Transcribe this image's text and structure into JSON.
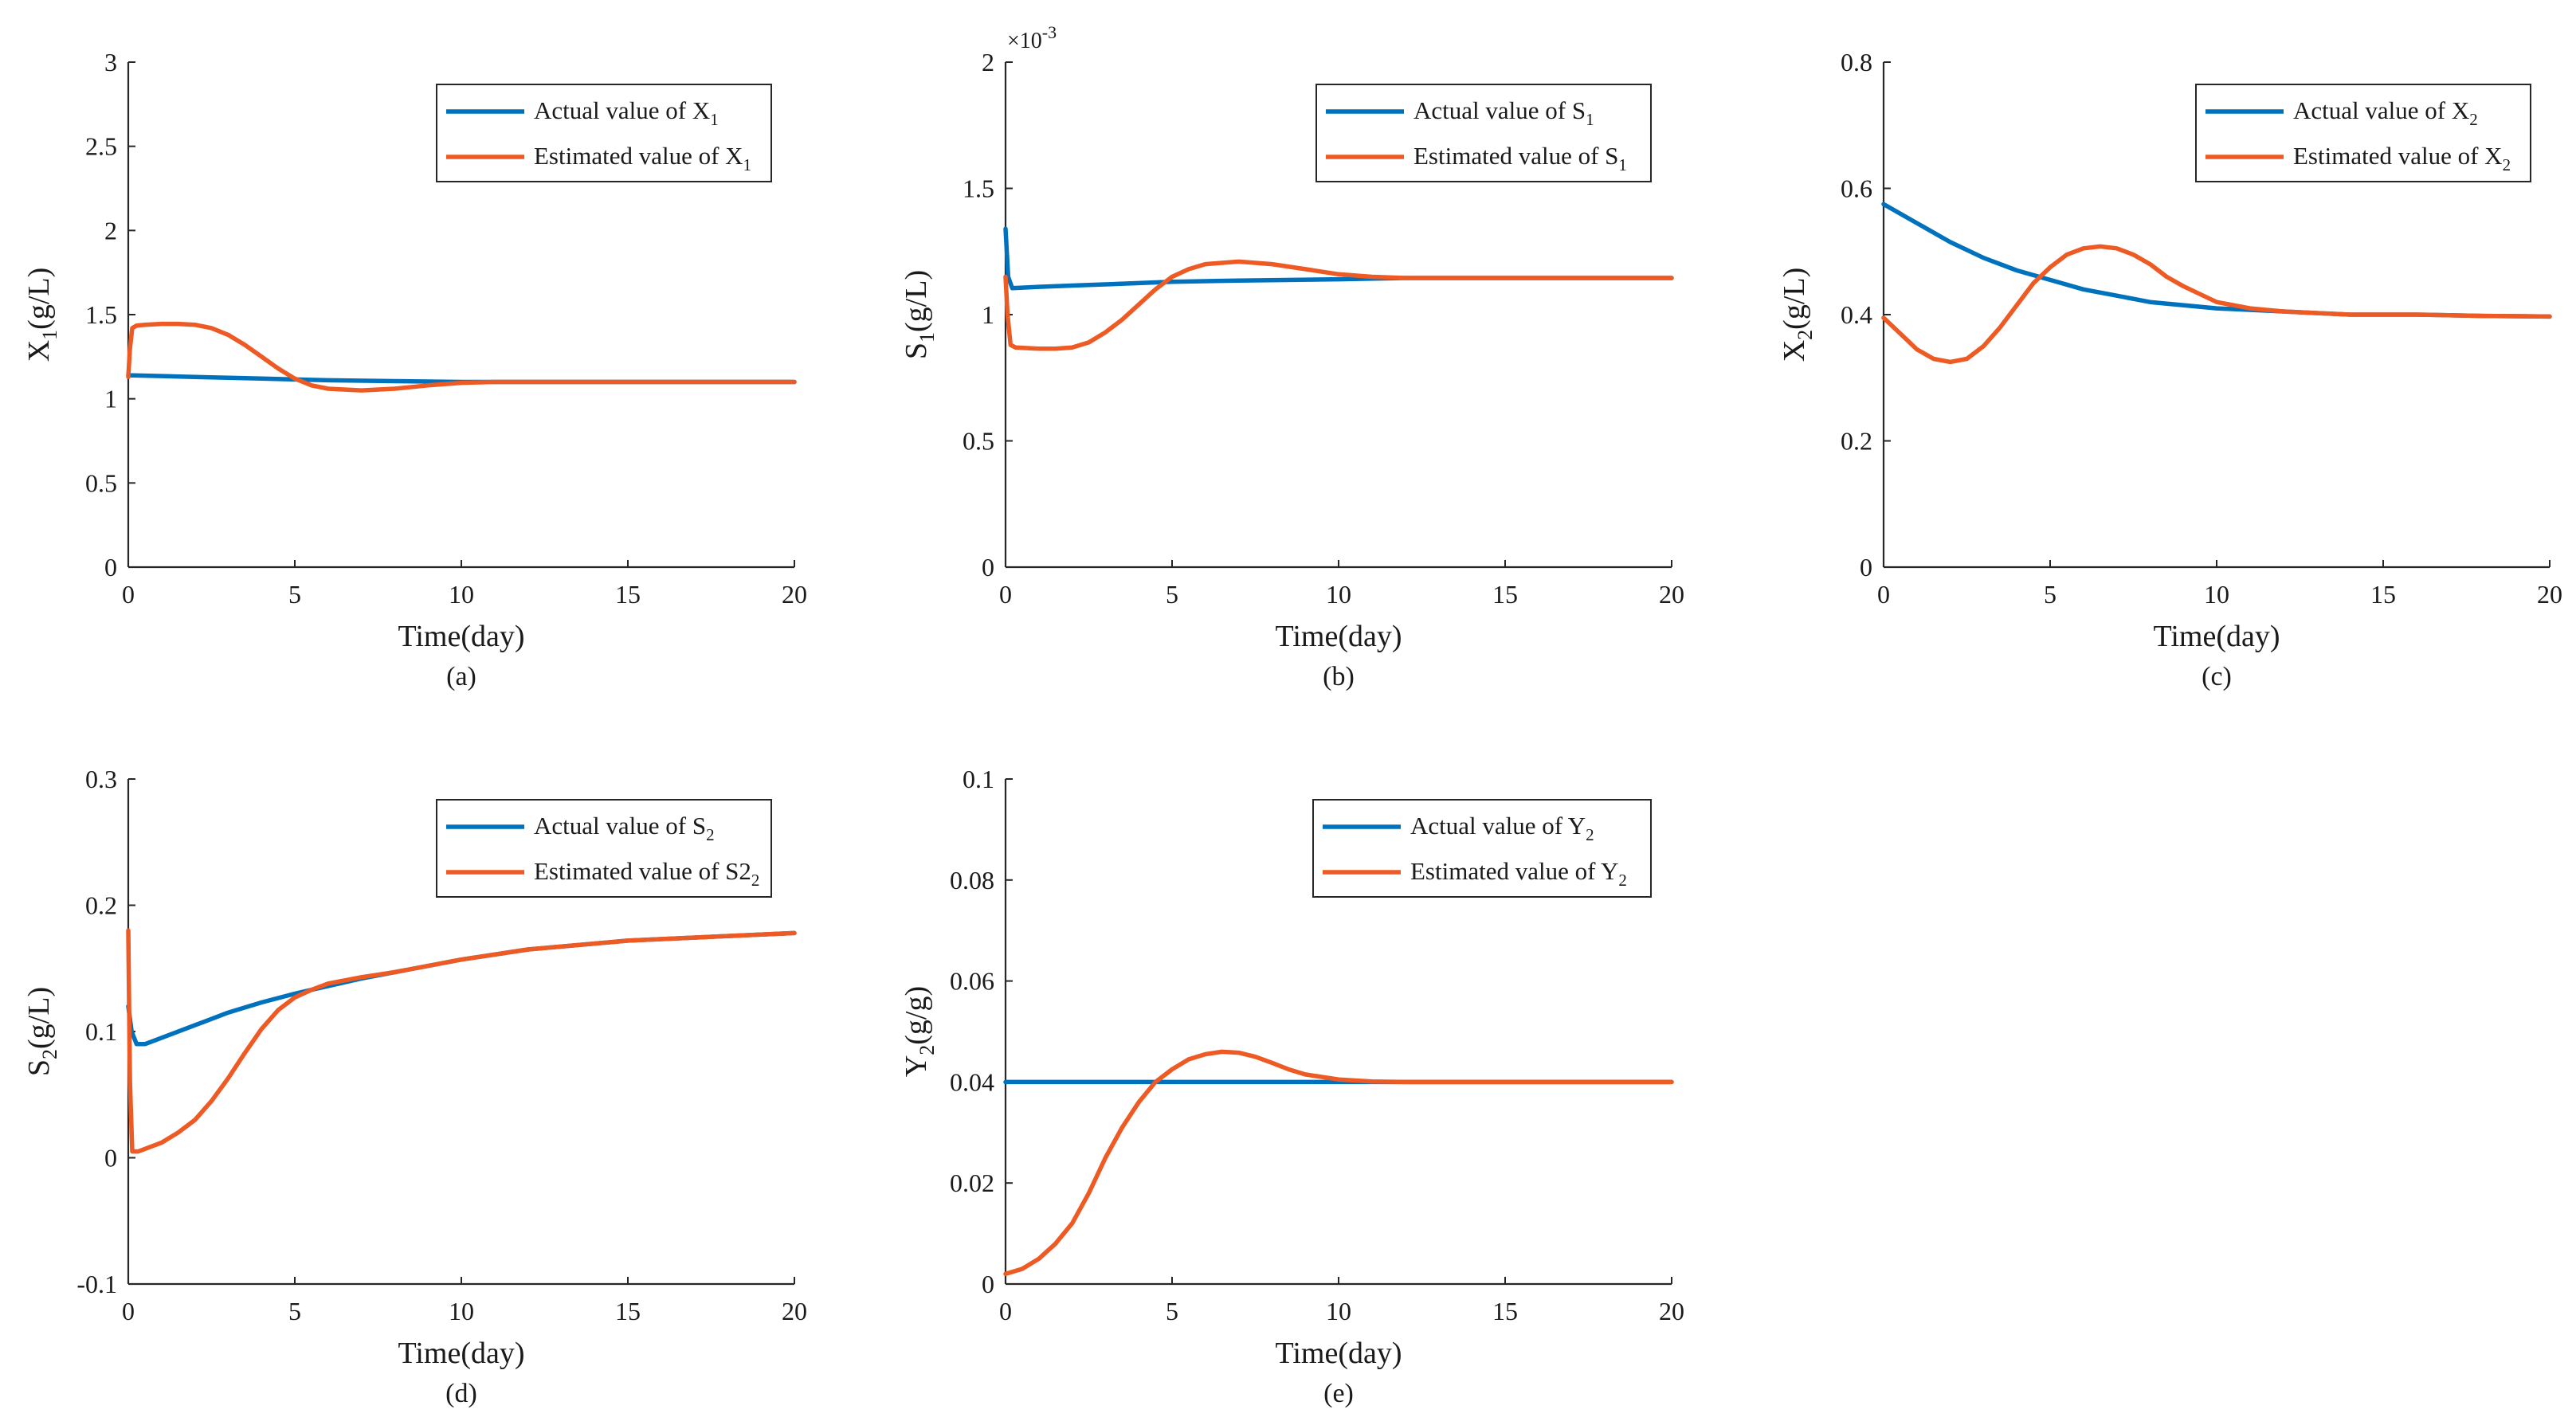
{
  "chart_data": [
    {
      "id": "a",
      "type": "line",
      "panel_label": "(a)",
      "xlabel": "Time(day)",
      "ylabel_main": "X",
      "ylabel_sub": "1",
      "ylabel_rest": "(g/L)",
      "xlim": [
        0,
        20
      ],
      "ylim": [
        0,
        3
      ],
      "xticks": [
        "0",
        "5",
        "10",
        "15",
        "20"
      ],
      "yticks": [
        "0",
        "0.5",
        "1",
        "1.5",
        "2",
        "2.5",
        "3"
      ],
      "exponent_label": "",
      "series": [
        {
          "name": "Actual value of X1",
          "legend_main": "Actual value of X",
          "legend_sub": "1",
          "color": "#0072BD",
          "x": [
            0,
            1,
            2,
            3,
            4,
            5,
            6,
            8,
            10,
            12,
            15,
            20
          ],
          "y": [
            1.14,
            1.135,
            1.13,
            1.125,
            1.12,
            1.115,
            1.11,
            1.105,
            1.1,
            1.1,
            1.1,
            1.1
          ]
        },
        {
          "name": "Estimated value of X1",
          "legend_main": "Estimated value of X",
          "legend_sub": "1",
          "color": "#EE5A24",
          "x": [
            0,
            0.05,
            0.12,
            0.25,
            0.5,
            1,
            1.5,
            2,
            2.5,
            3,
            3.5,
            4,
            4.5,
            5,
            5.5,
            6,
            7,
            8,
            9,
            10,
            11,
            12,
            15,
            20
          ],
          "y": [
            1.13,
            1.3,
            1.42,
            1.435,
            1.44,
            1.445,
            1.445,
            1.44,
            1.42,
            1.38,
            1.32,
            1.25,
            1.18,
            1.12,
            1.08,
            1.06,
            1.05,
            1.06,
            1.08,
            1.095,
            1.1,
            1.1,
            1.1,
            1.1
          ]
        }
      ]
    },
    {
      "id": "b",
      "type": "line",
      "panel_label": "(b)",
      "xlabel": "Time(day)",
      "ylabel_main": "S",
      "ylabel_sub": "1",
      "ylabel_rest": "(g/L)",
      "xlim": [
        0,
        20
      ],
      "ylim": [
        0,
        2
      ],
      "xticks": [
        "0",
        "5",
        "10",
        "15",
        "20"
      ],
      "yticks": [
        "0",
        "0.5",
        "1",
        "1.5",
        "2"
      ],
      "exponent_label": "×10",
      "exponent_power": "-3",
      "series": [
        {
          "name": "Actual value of S1",
          "legend_main": "Actual value of S",
          "legend_sub": "1",
          "color": "#0072BD",
          "x": [
            0,
            0.08,
            0.2,
            1,
            2,
            3,
            5,
            7,
            10,
            12,
            15,
            20
          ],
          "y": [
            1.34,
            1.15,
            1.105,
            1.11,
            1.115,
            1.12,
            1.13,
            1.135,
            1.14,
            1.145,
            1.145,
            1.145
          ]
        },
        {
          "name": "Estimated value of S1",
          "legend_main": "Estimated value of S",
          "legend_sub": "1",
          "color": "#EE5A24",
          "x": [
            0,
            0.06,
            0.15,
            0.3,
            1,
            1.5,
            2,
            2.5,
            3,
            3.5,
            4,
            4.5,
            5,
            5.5,
            6,
            7,
            8,
            9,
            10,
            11,
            12,
            15,
            20
          ],
          "y": [
            1.15,
            1.0,
            0.88,
            0.87,
            0.865,
            0.865,
            0.87,
            0.89,
            0.93,
            0.98,
            1.04,
            1.1,
            1.15,
            1.18,
            1.2,
            1.21,
            1.2,
            1.18,
            1.16,
            1.15,
            1.145,
            1.145,
            1.145
          ]
        }
      ]
    },
    {
      "id": "c",
      "type": "line",
      "panel_label": "(c)",
      "xlabel": "Time(day)",
      "ylabel_main": "X",
      "ylabel_sub": "2",
      "ylabel_rest": "(g/L)",
      "xlim": [
        0,
        20
      ],
      "ylim": [
        0,
        0.8
      ],
      "xticks": [
        "0",
        "5",
        "10",
        "15",
        "20"
      ],
      "yticks": [
        "0",
        "0.2",
        "0.4",
        "0.6",
        "0.8"
      ],
      "exponent_label": "",
      "series": [
        {
          "name": "Actual value of X2",
          "legend_main": "Actual value of X",
          "legend_sub": "2",
          "color": "#0072BD",
          "x": [
            0,
            1,
            2,
            3,
            4,
            5,
            6,
            7,
            8,
            10,
            12,
            14,
            16,
            18,
            20
          ],
          "y": [
            0.575,
            0.545,
            0.515,
            0.49,
            0.47,
            0.455,
            0.44,
            0.43,
            0.42,
            0.41,
            0.405,
            0.4,
            0.4,
            0.398,
            0.397
          ]
        },
        {
          "name": "Estimated value of X2",
          "legend_main": "Estimated value of X",
          "legend_sub": "2",
          "color": "#EE5A24",
          "x": [
            0,
            0.5,
            1,
            1.5,
            2,
            2.5,
            3,
            3.5,
            4,
            4.5,
            5,
            5.5,
            6,
            6.5,
            7,
            7.5,
            8,
            8.5,
            9,
            10,
            11,
            12,
            14,
            16,
            18,
            20
          ],
          "y": [
            0.395,
            0.37,
            0.345,
            0.33,
            0.325,
            0.33,
            0.35,
            0.38,
            0.415,
            0.45,
            0.475,
            0.495,
            0.505,
            0.508,
            0.505,
            0.495,
            0.48,
            0.46,
            0.445,
            0.42,
            0.41,
            0.405,
            0.4,
            0.4,
            0.398,
            0.397
          ]
        }
      ]
    },
    {
      "id": "d",
      "type": "line",
      "panel_label": "(d)",
      "xlabel": "Time(day)",
      "ylabel_main": "S",
      "ylabel_sub": "2",
      "ylabel_rest": "(g/L)",
      "xlim": [
        0,
        20
      ],
      "ylim": [
        -0.1,
        0.3
      ],
      "xticks": [
        "0",
        "5",
        "10",
        "15",
        "20"
      ],
      "yticks": [
        "-0.1",
        "0",
        "0.1",
        "0.2",
        "0.3"
      ],
      "exponent_label": "",
      "series": [
        {
          "name": "Actual value of S2",
          "legend_main": "Actual value of S",
          "legend_sub": "2",
          "color": "#0072BD",
          "x": [
            0,
            0.1,
            0.25,
            0.5,
            1,
            2,
            3,
            4,
            5,
            6,
            7,
            8,
            10,
            12,
            15,
            20
          ],
          "y": [
            0.12,
            0.1,
            0.09,
            0.09,
            0.095,
            0.105,
            0.115,
            0.123,
            0.13,
            0.136,
            0.142,
            0.147,
            0.157,
            0.165,
            0.172,
            0.178
          ]
        },
        {
          "name": "Estimated value of S2",
          "legend_main": "Estimated value of S2",
          "legend_sub": "2",
          "color": "#EE5A24",
          "x": [
            0,
            0.05,
            0.12,
            0.3,
            0.6,
            1,
            1.5,
            2,
            2.5,
            3,
            3.5,
            4,
            4.5,
            5,
            5.5,
            6,
            7,
            8,
            10,
            12,
            15,
            20
          ],
          "y": [
            0.18,
            0.06,
            0.005,
            0.005,
            0.008,
            0.012,
            0.02,
            0.03,
            0.045,
            0.063,
            0.083,
            0.102,
            0.117,
            0.127,
            0.133,
            0.138,
            0.143,
            0.147,
            0.157,
            0.165,
            0.172,
            0.178
          ]
        }
      ]
    },
    {
      "id": "e",
      "type": "line",
      "panel_label": "(e)",
      "xlabel": "Time(day)",
      "ylabel_main": "Y",
      "ylabel_sub": "2",
      "ylabel_rest": "(g/g)",
      "xlim": [
        0,
        20
      ],
      "ylim": [
        0,
        0.1
      ],
      "xticks": [
        "0",
        "5",
        "10",
        "15",
        "20"
      ],
      "yticks": [
        "0",
        "0.02",
        "0.04",
        "0.06",
        "0.08",
        "0.1"
      ],
      "exponent_label": "",
      "series": [
        {
          "name": "Actual value of Y2",
          "legend_main": "Actual value of Y",
          "legend_sub": "2",
          "color": "#0072BD",
          "x": [
            0,
            20
          ],
          "y": [
            0.04,
            0.04
          ]
        },
        {
          "name": "Estimated value of Y2",
          "legend_main": "Estimated value of Y",
          "legend_sub": "2",
          "color": "#EE5A24",
          "x": [
            0,
            0.5,
            1,
            1.5,
            2,
            2.5,
            3,
            3.5,
            4,
            4.5,
            5,
            5.5,
            6,
            6.5,
            7,
            7.5,
            8,
            8.5,
            9,
            10,
            11,
            12,
            15,
            20
          ],
          "y": [
            0.002,
            0.003,
            0.005,
            0.008,
            0.012,
            0.018,
            0.025,
            0.031,
            0.036,
            0.04,
            0.0425,
            0.0445,
            0.0455,
            0.046,
            0.0458,
            0.045,
            0.0438,
            0.0425,
            0.0415,
            0.0405,
            0.0401,
            0.04,
            0.04,
            0.04
          ]
        }
      ]
    }
  ]
}
